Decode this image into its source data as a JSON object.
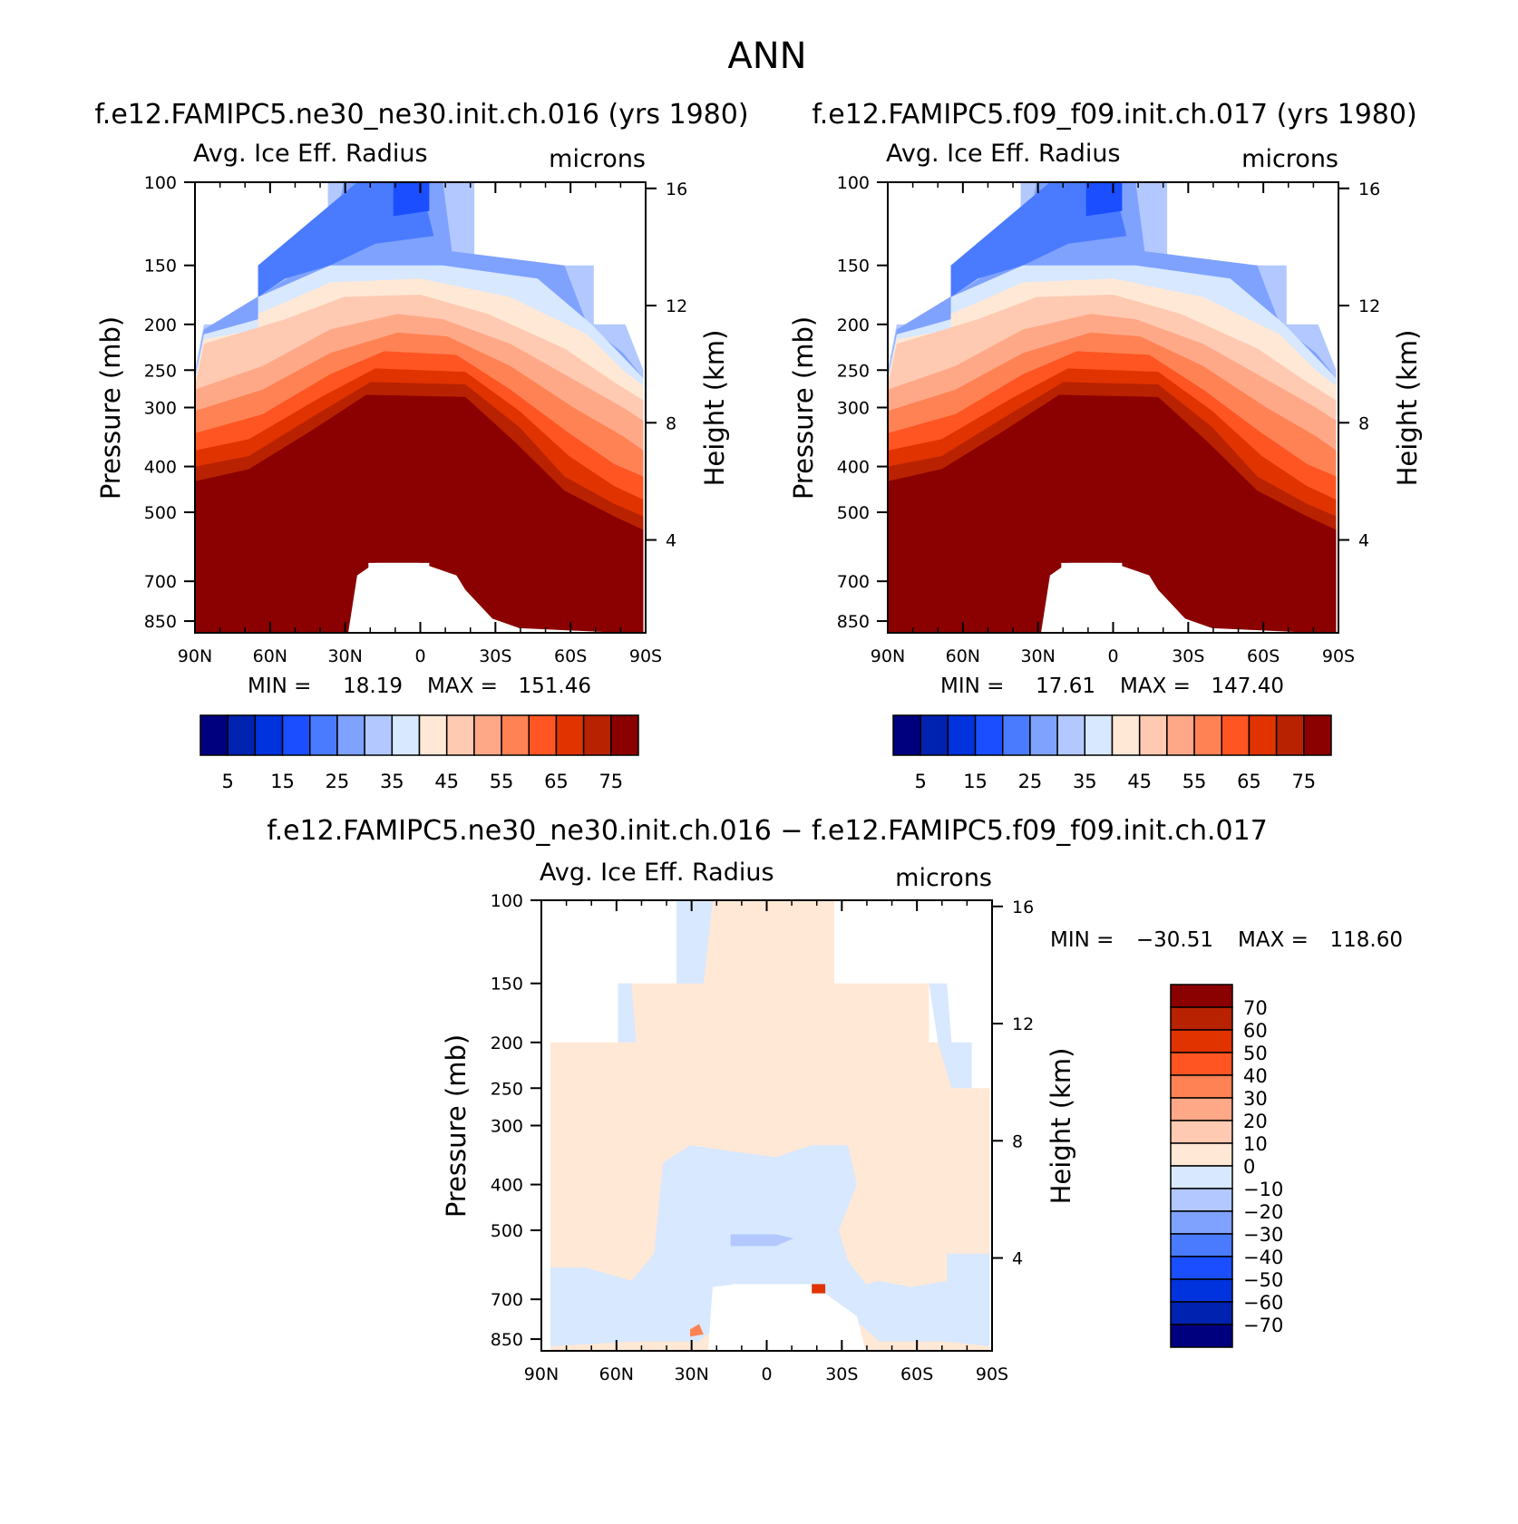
{
  "page": {
    "main_title": "ANN"
  },
  "colors": {
    "mean_palette": [
      "#00007f",
      "#0022b0",
      "#0033dd",
      "#1a4eff",
      "#4a7bff",
      "#7fa2ff",
      "#b2c8ff",
      "#d7e8ff",
      "#ffe8d6",
      "#ffc9b2",
      "#ffa888",
      "#ff8255",
      "#ff5522",
      "#e03300",
      "#b82200",
      "#8b0000"
    ],
    "diff_palette": [
      "#00007f",
      "#0022b0",
      "#0033dd",
      "#1a4eff",
      "#4a7bff",
      "#7fa2ff",
      "#b2c8ff",
      "#d7e8ff",
      "#ffe8d6",
      "#ffc9b2",
      "#ffa888",
      "#ff8255",
      "#ff5522",
      "#e03300",
      "#b82200",
      "#8b0000"
    ]
  },
  "chart_data": [
    {
      "type": "heatmap",
      "title": "f.e12.FAMIPC5.ne30_ne30.init.ch.016 (yrs 1980)",
      "left_string": "Avg. Ice Eff. Radius",
      "right_string": "microns",
      "x_ticks": [
        "90N",
        "60N",
        "30N",
        "0",
        "30S",
        "60S",
        "90S"
      ],
      "y_ticks": [
        "100",
        "150",
        "200",
        "250",
        "300",
        "400",
        "500",
        "700",
        "850"
      ],
      "y_ticks_right": [
        "16",
        "12",
        "8",
        "4"
      ],
      "ylabel": "Pressure (mb)",
      "ylabel_right": "Height (km)",
      "stats": {
        "min_label": "MIN =",
        "min": "18.19",
        "max_label": "MAX =",
        "max": "151.46"
      },
      "colorbar": {
        "orientation": "horizontal",
        "labels": [
          "5",
          "15",
          "25",
          "35",
          "45",
          "55",
          "65",
          "75"
        ]
      }
    },
    {
      "type": "heatmap",
      "title": "f.e12.FAMIPC5.f09_f09.init.ch.017 (yrs 1980)",
      "left_string": "Avg. Ice Eff. Radius",
      "right_string": "microns",
      "x_ticks": [
        "90N",
        "60N",
        "30N",
        "0",
        "30S",
        "60S",
        "90S"
      ],
      "y_ticks": [
        "100",
        "150",
        "200",
        "250",
        "300",
        "400",
        "500",
        "700",
        "850"
      ],
      "y_ticks_right": [
        "16",
        "12",
        "8",
        "4"
      ],
      "ylabel": "Pressure (mb)",
      "ylabel_right": "Height (km)",
      "stats": {
        "min_label": "MIN =",
        "min": "17.61",
        "max_label": "MAX =",
        "max": "147.40"
      },
      "colorbar": {
        "orientation": "horizontal",
        "labels": [
          "5",
          "15",
          "25",
          "35",
          "45",
          "55",
          "65",
          "75"
        ]
      }
    },
    {
      "type": "heatmap",
      "title": "f.e12.FAMIPC5.ne30_ne30.init.ch.016 − f.e12.FAMIPC5.f09_f09.init.ch.017",
      "left_string": "Avg. Ice Eff. Radius",
      "right_string": "microns",
      "x_ticks": [
        "90N",
        "60N",
        "30N",
        "0",
        "30S",
        "60S",
        "90S"
      ],
      "y_ticks": [
        "100",
        "150",
        "200",
        "250",
        "300",
        "400",
        "500",
        "700",
        "850"
      ],
      "y_ticks_right": [
        "16",
        "12",
        "8",
        "4"
      ],
      "ylabel": "Pressure (mb)",
      "ylabel_right": "Height (km)",
      "stats": {
        "min_label": "MIN =",
        "min": "−30.51",
        "max_label": "MAX =",
        "max": "118.60"
      },
      "colorbar": {
        "orientation": "vertical",
        "labels": [
          "70",
          "60",
          "50",
          "40",
          "30",
          "20",
          "10",
          "0",
          "−10",
          "−20",
          "−30",
          "−40",
          "−50",
          "−60",
          "−70"
        ]
      }
    }
  ]
}
